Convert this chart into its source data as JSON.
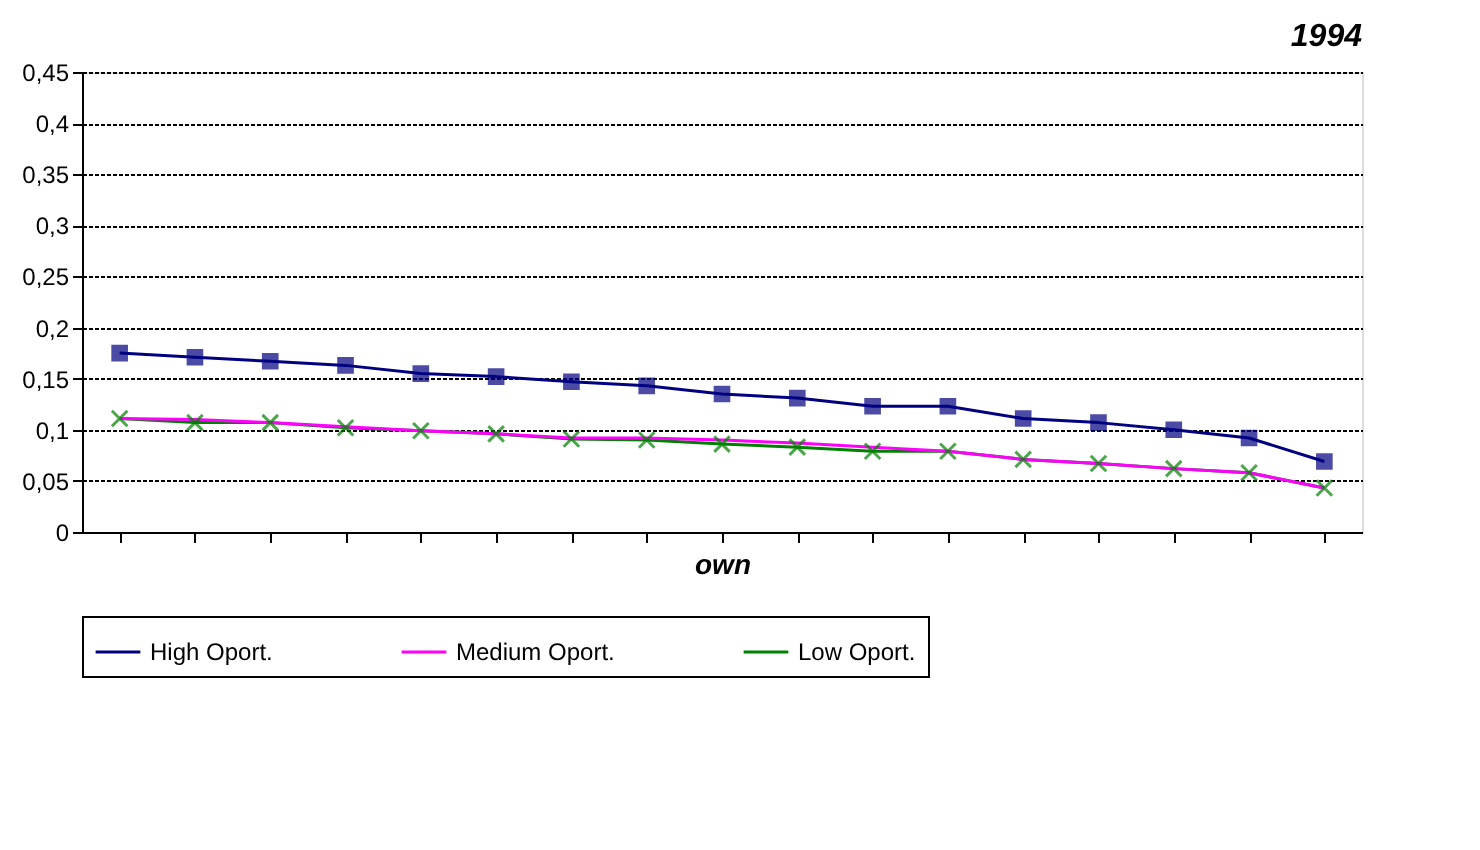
{
  "chart_data": {
    "type": "line",
    "title": "1994",
    "xlabel": "own",
    "categories": [
      null,
      null,
      null,
      null,
      null,
      null,
      null,
      null,
      null,
      null,
      null,
      null,
      null,
      null,
      null,
      null,
      null
    ],
    "series": [
      {
        "name": "High Oport.",
        "color": "#000080",
        "marker": "square",
        "values": [
          0.175,
          0.171,
          0.167,
          0.163,
          0.155,
          0.152,
          0.147,
          0.143,
          0.135,
          0.131,
          0.123,
          0.123,
          0.111,
          0.107,
          0.1,
          0.092,
          0.069
        ]
      },
      {
        "name": "Medium Oport.",
        "color": "#ff00ff",
        "marker": "none",
        "values": [
          0.111,
          0.11,
          0.107,
          0.103,
          0.099,
          0.096,
          0.092,
          0.092,
          0.09,
          0.087,
          0.083,
          0.079,
          0.071,
          0.067,
          0.062,
          0.058,
          0.043
        ]
      },
      {
        "name": "Low Oport.",
        "color": "#008000",
        "marker": "cross",
        "values": [
          0.111,
          0.107,
          0.107,
          0.102,
          0.099,
          0.096,
          0.091,
          0.09,
          0.086,
          0.083,
          0.079,
          0.079,
          0.071,
          0.067,
          0.062,
          0.058,
          0.043
        ]
      }
    ],
    "ylim": [
      0,
      0.45
    ],
    "yticks": [
      0,
      {
        "value": 0.05,
        "label": "0,05"
      },
      {
        "value": 0.1,
        "label": "0,1"
      },
      {
        "value": 0.15,
        "label": "0,15"
      },
      {
        "value": 0.2,
        "label": "0,2"
      },
      {
        "value": 0.25,
        "label": "0,25"
      },
      {
        "value": 0.3,
        "label": "0,3"
      },
      {
        "value": 0.35,
        "label": "0,35"
      },
      {
        "value": 0.4,
        "label": "0,4"
      },
      {
        "value": 0.45,
        "label": "0,45"
      }
    ],
    "grid": "y",
    "legend": "bottom",
    "tick_labels": "y",
    "line_style": "solid"
  }
}
